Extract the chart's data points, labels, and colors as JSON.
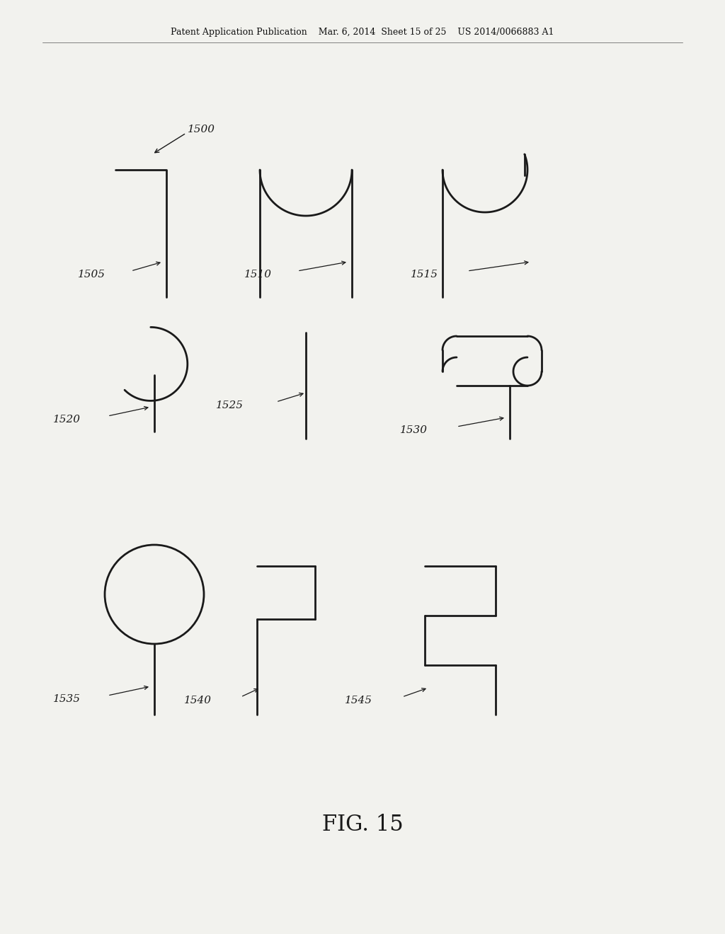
{
  "bg_color": "#f2f2ee",
  "line_color": "#1a1a1a",
  "line_width": 2.0,
  "header_left": "Patent Application Publication",
  "header_mid": "Mar. 6, 2014  Sheet 15 of 25",
  "header_right": "US 2014/0066883 A1",
  "figure_label": "FIG. 15",
  "labels": [
    "1500",
    "1505",
    "1510",
    "1515",
    "1520",
    "1525",
    "1530",
    "1535",
    "1540",
    "1545"
  ]
}
